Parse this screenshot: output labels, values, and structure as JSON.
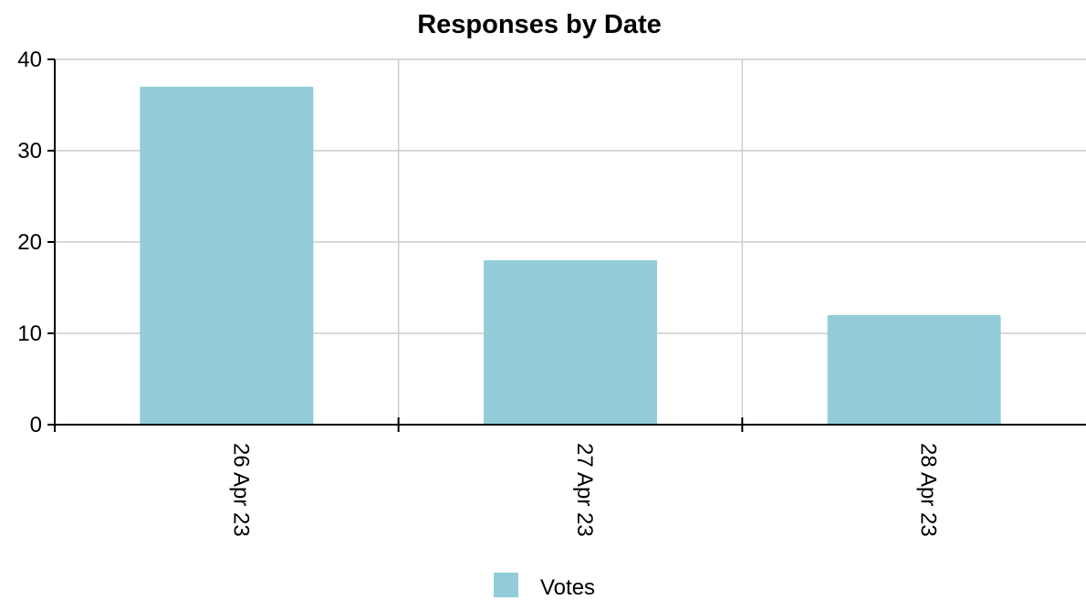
{
  "chart_data": {
    "type": "bar",
    "title": "Responses by Date",
    "categories": [
      "26 Apr 23",
      "27 Apr 23",
      "28 Apr 23"
    ],
    "series": [
      {
        "name": "Votes",
        "values": [
          37,
          18,
          12
        ],
        "color": "#92ccd9"
      }
    ],
    "ylim": [
      0,
      40
    ],
    "yticks": [
      0,
      10,
      20,
      30,
      40
    ],
    "grid": true,
    "legend_position": "bottom-center"
  }
}
